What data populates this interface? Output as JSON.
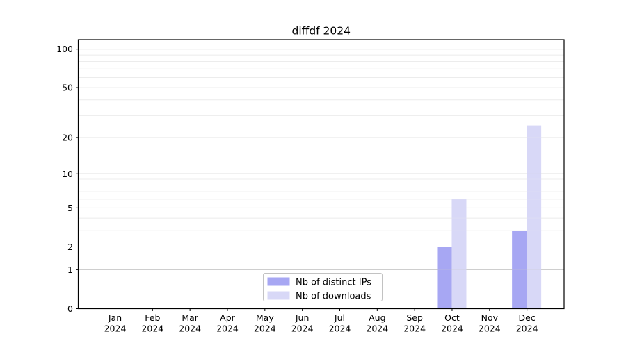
{
  "figure": {
    "background": "#ffffff"
  },
  "chart_data": {
    "type": "bar",
    "title": "diffdf 2024",
    "categories": [
      "Jan 2024",
      "Feb 2024",
      "Mar 2024",
      "Apr 2024",
      "May 2024",
      "Jun 2024",
      "Jul 2024",
      "Aug 2024",
      "Sep 2024",
      "Oct 2024",
      "Nov 2024",
      "Dec 2024"
    ],
    "series": [
      {
        "name": "Nb of distinct IPs",
        "color": "#a7a7f3",
        "values": [
          0,
          0,
          0,
          0,
          0,
          0,
          0,
          0,
          0,
          2,
          0,
          3
        ]
      },
      {
        "name": "Nb of downloads",
        "color": "#d8d8f7",
        "values": [
          0,
          0,
          0,
          0,
          0,
          0,
          0,
          0,
          0,
          6,
          0,
          25
        ]
      }
    ],
    "xlabel": "",
    "ylabel": "",
    "yscale": "log1p",
    "ylim": [
      0,
      119
    ],
    "yticks": [
      0,
      1,
      2,
      5,
      10,
      20,
      50,
      100
    ],
    "grid": {
      "major_ticks": [
        1,
        10,
        100
      ],
      "minor_ticks": [
        2,
        3,
        4,
        5,
        6,
        7,
        8,
        9,
        20,
        30,
        40,
        50,
        60,
        70,
        80,
        90
      ],
      "major_color": "#c9c9c9",
      "minor_color": "#ececec"
    },
    "legend": {
      "position": "bottom-center",
      "entries": [
        "Nb of distinct IPs",
        "Nb of downloads"
      ]
    }
  }
}
